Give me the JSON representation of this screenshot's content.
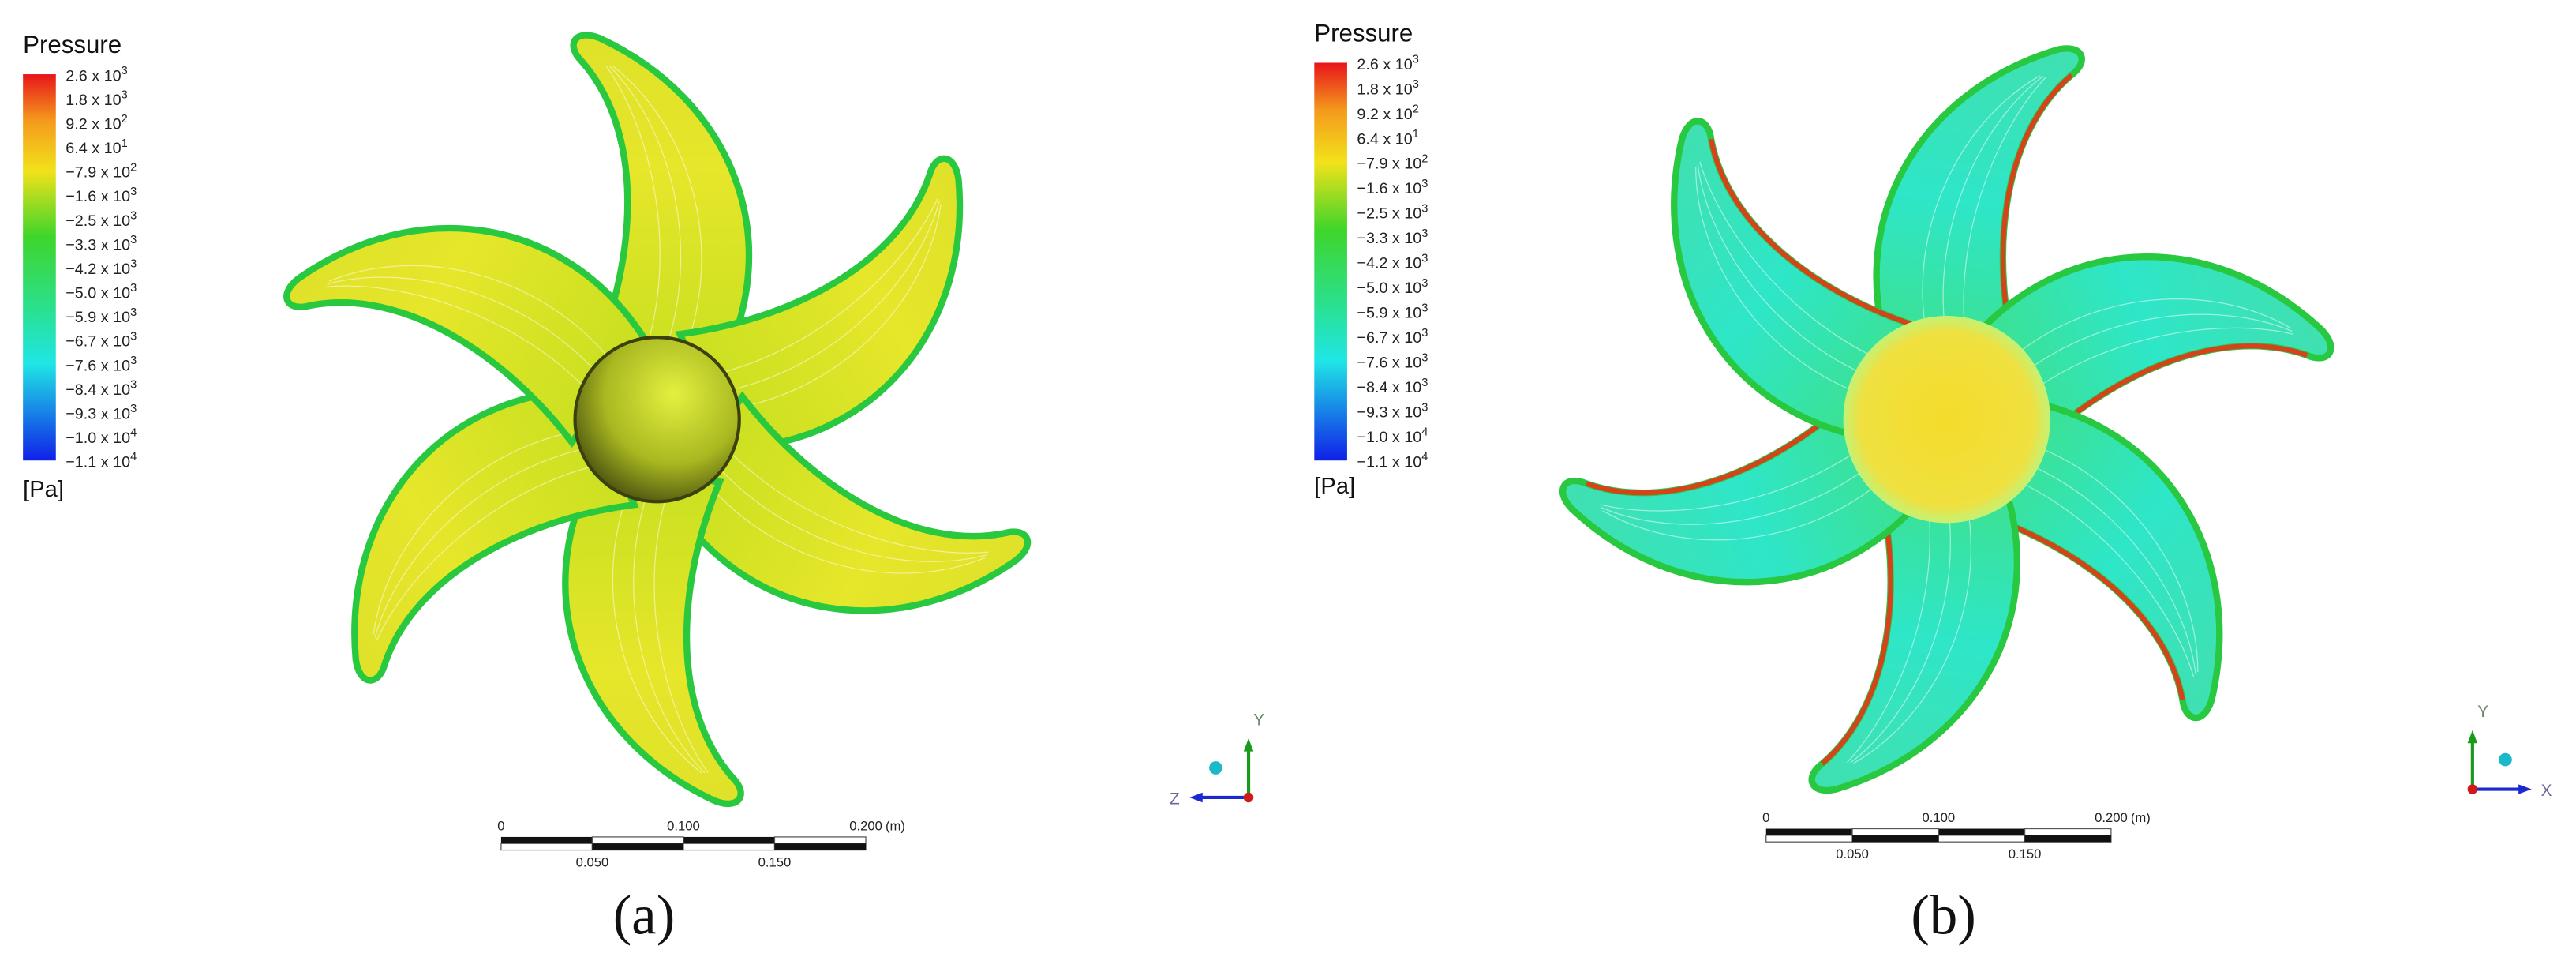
{
  "panels": [
    {
      "legend": {
        "title": "Pressure",
        "labels": [
          {
            "coef": "2.6 x 10",
            "exp": "3"
          },
          {
            "coef": "1.8 x 10",
            "exp": "3"
          },
          {
            "coef": "9.2 x 10",
            "exp": "2"
          },
          {
            "coef": "6.4 x 10",
            "exp": "1"
          },
          {
            "coef": "−7.9 x 10",
            "exp": "2"
          },
          {
            "coef": "−1.6 x 10",
            "exp": "3"
          },
          {
            "coef": "−2.5 x 10",
            "exp": "3"
          },
          {
            "coef": "−3.3 x 10",
            "exp": "3"
          },
          {
            "coef": "−4.2 x 10",
            "exp": "3"
          },
          {
            "coef": "−5.0 x 10",
            "exp": "3"
          },
          {
            "coef": "−5.9 x 10",
            "exp": "3"
          },
          {
            "coef": "−6.7 x 10",
            "exp": "3"
          },
          {
            "coef": "−7.6 x 10",
            "exp": "3"
          },
          {
            "coef": "−8.4 x 10",
            "exp": "3"
          },
          {
            "coef": "−9.3 x 10",
            "exp": "3"
          },
          {
            "coef": "−1.0 x 10",
            "exp": "4"
          },
          {
            "coef": "−1.1 x 10",
            "exp": "4"
          }
        ],
        "unit": "[Pa]"
      },
      "scale_bar": {
        "top_labels": [
          "0",
          "0.100",
          "0.200"
        ],
        "unit": "(m)",
        "bottom_labels": [
          "0.050",
          "0.150"
        ]
      },
      "axes": {
        "vertical": "Y",
        "horizontal": "Z"
      },
      "caption": "(a)"
    },
    {
      "legend": {
        "title": "Pressure",
        "labels": [
          {
            "coef": "2.6 x 10",
            "exp": "3"
          },
          {
            "coef": "1.8 x 10",
            "exp": "3"
          },
          {
            "coef": "9.2 x 10",
            "exp": "2"
          },
          {
            "coef": "6.4 x 10",
            "exp": "1"
          },
          {
            "coef": "−7.9 x 10",
            "exp": "2"
          },
          {
            "coef": "−1.6 x 10",
            "exp": "3"
          },
          {
            "coef": "−2.5 x 10",
            "exp": "3"
          },
          {
            "coef": "−3.3 x 10",
            "exp": "3"
          },
          {
            "coef": "−4.2 x 10",
            "exp": "3"
          },
          {
            "coef": "−5.0 x 10",
            "exp": "3"
          },
          {
            "coef": "−5.9 x 10",
            "exp": "3"
          },
          {
            "coef": "−6.7 x 10",
            "exp": "3"
          },
          {
            "coef": "−7.6 x 10",
            "exp": "3"
          },
          {
            "coef": "−8.4 x 10",
            "exp": "3"
          },
          {
            "coef": "−9.3 x 10",
            "exp": "3"
          },
          {
            "coef": "−1.0 x 10",
            "exp": "4"
          },
          {
            "coef": "−1.1 x 10",
            "exp": "4"
          }
        ],
        "unit": "[Pa]"
      },
      "scale_bar": {
        "top_labels": [
          "0",
          "0.100",
          "0.200"
        ],
        "unit": "(m)",
        "bottom_labels": [
          "0.050",
          "0.150"
        ]
      },
      "axes": {
        "vertical": "Y",
        "horizontal": "X"
      },
      "caption": "(b)"
    }
  ]
}
